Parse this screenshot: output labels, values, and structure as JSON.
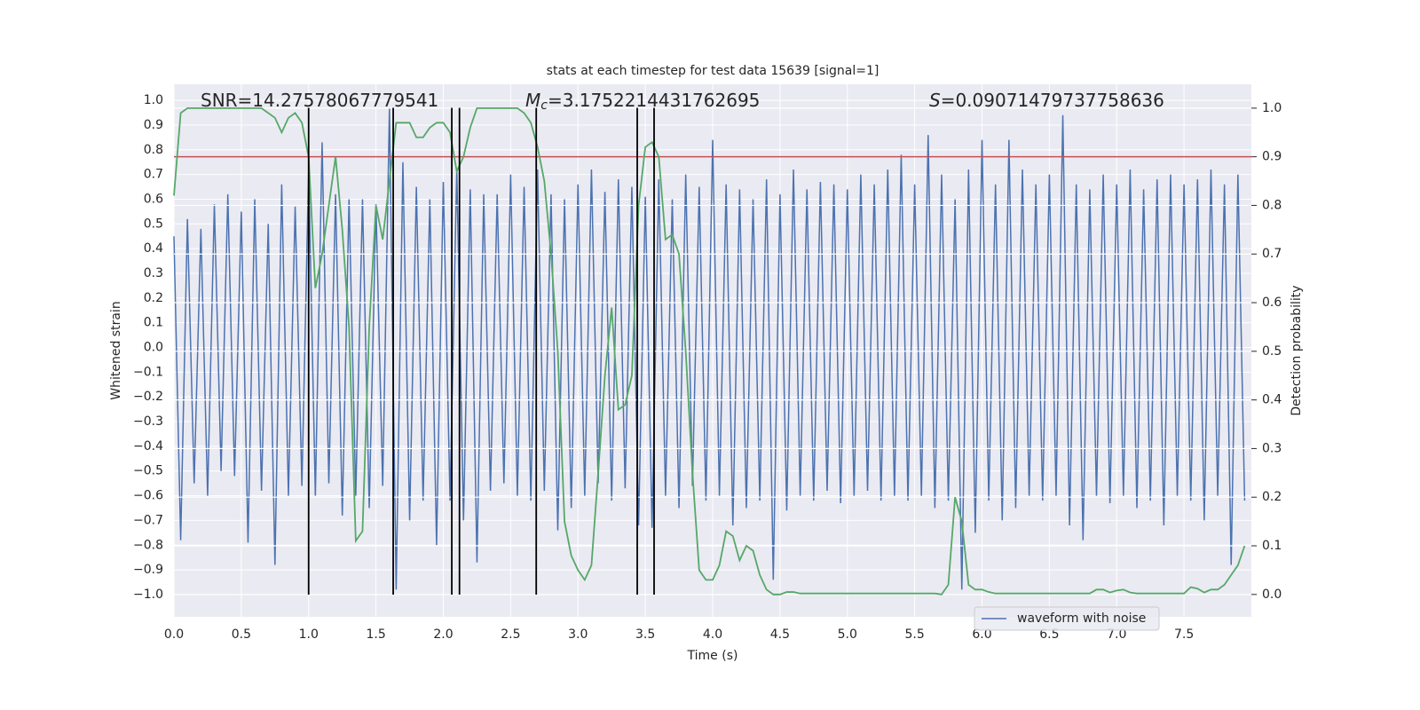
{
  "chart_data": {
    "type": "line",
    "title": "stats at each timestep for test data 15639 [signal=1]",
    "xlabel": "Time (s)",
    "ylabel": "Whitened strain",
    "y2label": "Detection probability",
    "annotations": [
      {
        "text": "SNR=14.27578067779541"
      },
      {
        "symbol": "M",
        "subscript": "c",
        "text": "=3.1752214431762695"
      },
      {
        "symbol": "S",
        "text": "=0.09071479737758636"
      }
    ],
    "xlim": [
      0,
      8.0
    ],
    "ylim": [
      -1.09,
      1.065
    ],
    "y2lim": [
      -0.046,
      1.049
    ],
    "xticks": [
      {
        "value": 0,
        "label": "0.0"
      },
      0.5,
      {
        "value": 1,
        "label": "1.0"
      },
      1.5,
      {
        "value": 2,
        "label": "2.0"
      },
      2.5,
      {
        "value": 3,
        "label": "3.0"
      },
      3.5,
      {
        "value": 4,
        "label": "4.0"
      },
      4.5,
      {
        "value": 5,
        "label": "5.0"
      },
      5.5,
      {
        "value": 6,
        "label": "6.0"
      },
      6.5,
      {
        "value": 7,
        "label": "7.0"
      },
      7.5
    ],
    "yticks": [
      {
        "value": -1.0,
        "label": "−1.0"
      },
      {
        "value": -0.9,
        "label": "−0.9"
      },
      {
        "value": -0.8,
        "label": "−0.8"
      },
      {
        "value": -0.7,
        "label": "−0.7"
      },
      {
        "value": -0.6,
        "label": "−0.6"
      },
      {
        "value": -0.5,
        "label": "−0.5"
      },
      {
        "value": -0.4,
        "label": "−0.4"
      },
      {
        "value": -0.3,
        "label": "−0.3"
      },
      {
        "value": -0.2,
        "label": "−0.2"
      },
      {
        "value": -0.1,
        "label": "−0.1"
      },
      {
        "value": 0,
        "label": "0.0"
      },
      0.1,
      0.2,
      0.3,
      0.4,
      0.5,
      0.6,
      0.7,
      0.8,
      0.9,
      {
        "value": 1,
        "label": "1.0"
      }
    ],
    "y2ticks": [
      {
        "value": 0,
        "label": "0.0"
      },
      0.1,
      0.2,
      0.3,
      0.4,
      0.5,
      0.6,
      0.7,
      0.8,
      0.9,
      {
        "value": 1,
        "label": "1.0"
      }
    ],
    "grid": true,
    "legend": "lower right",
    "x": [
      0,
      0.05,
      0.1,
      0.15,
      0.2,
      0.25,
      0.3,
      0.35,
      0.4,
      0.45,
      0.5,
      0.55,
      0.6,
      0.65,
      0.7,
      0.75,
      0.8,
      0.85,
      0.9,
      0.95,
      1,
      1.05,
      1.1,
      1.15,
      1.2,
      1.25,
      1.3,
      1.35,
      1.4,
      1.45,
      1.5,
      1.55,
      1.6,
      1.65,
      1.7,
      1.75,
      1.8,
      1.85,
      1.9,
      1.95,
      2,
      2.05,
      2.1,
      2.15,
      2.2,
      2.25,
      2.3,
      2.35,
      2.4,
      2.45,
      2.5,
      2.55,
      2.6,
      2.65,
      2.7,
      2.75,
      2.8,
      2.85,
      2.9,
      2.95,
      3,
      3.05,
      3.1,
      3.15,
      3.2,
      3.25,
      3.3,
      3.35,
      3.4,
      3.45,
      3.5,
      3.55,
      3.6,
      3.65,
      3.7,
      3.75,
      3.8,
      3.85,
      3.9,
      3.95,
      4,
      4.05,
      4.1,
      4.15,
      4.2,
      4.25,
      4.3,
      4.35,
      4.4,
      4.45,
      4.5,
      4.55,
      4.6,
      4.65,
      4.7,
      4.75,
      4.8,
      4.85,
      4.9,
      4.95,
      5,
      5.05,
      5.1,
      5.15,
      5.2,
      5.25,
      5.3,
      5.35,
      5.4,
      5.45,
      5.5,
      5.55,
      5.6,
      5.65,
      5.7,
      5.75,
      5.8,
      5.85,
      5.9,
      5.95,
      6,
      6.05,
      6.1,
      6.15,
      6.2,
      6.25,
      6.3,
      6.35,
      6.4,
      6.45,
      6.5,
      6.55,
      6.6,
      6.65,
      6.7,
      6.75,
      6.8,
      6.85,
      6.9,
      6.95,
      7,
      7.05,
      7.1,
      7.15,
      7.2,
      7.25,
      7.3,
      7.35,
      7.4,
      7.45,
      7.5,
      7.55,
      7.6,
      7.65,
      7.7,
      7.75,
      7.8,
      7.85,
      7.9,
      7.95
    ],
    "series": [
      {
        "name": "waveform with noise",
        "color": "#4c72b0",
        "values": [
          0.45,
          -0.78,
          0.52,
          -0.55,
          0.48,
          -0.6,
          0.58,
          -0.5,
          0.62,
          -0.52,
          0.55,
          -0.79,
          0.6,
          -0.58,
          0.5,
          -0.88,
          0.66,
          -0.6,
          0.57,
          -0.56,
          0.72,
          -0.6,
          0.83,
          -0.55,
          0.62,
          -0.68,
          0.6,
          -0.6,
          0.6,
          -0.65,
          0.58,
          -0.56,
          0.97,
          -0.98,
          0.75,
          -0.7,
          0.65,
          -0.62,
          0.6,
          -0.8,
          0.67,
          -0.62,
          0.72,
          -0.7,
          0.64,
          -0.87,
          0.62,
          -0.58,
          0.62,
          -0.55,
          0.7,
          -0.6,
          0.65,
          -0.62,
          0.72,
          -0.58,
          0.62,
          -0.74,
          0.6,
          -0.65,
          0.66,
          -0.6,
          0.72,
          -0.55,
          0.63,
          -0.62,
          0.68,
          -0.57,
          0.65,
          -0.72,
          0.61,
          -0.73,
          0.68,
          -0.6,
          0.6,
          -0.65,
          0.7,
          -0.56,
          0.65,
          -0.62,
          0.84,
          -0.6,
          0.66,
          -0.72,
          0.64,
          -0.65,
          0.6,
          -0.62,
          0.68,
          -0.94,
          0.62,
          -0.66,
          0.72,
          -0.6,
          0.64,
          -0.62,
          0.67,
          -0.58,
          0.66,
          -0.63,
          0.64,
          -0.6,
          0.7,
          -0.58,
          0.66,
          -0.62,
          0.72,
          -0.6,
          0.78,
          -0.62,
          0.66,
          -0.6,
          0.86,
          -0.65,
          0.7,
          -0.62,
          0.6,
          -0.98,
          0.72,
          -0.75,
          0.84,
          -0.62,
          0.66,
          -0.7,
          0.84,
          -0.65,
          0.72,
          -0.6,
          0.66,
          -0.62,
          0.7,
          -0.6,
          0.94,
          -0.72,
          0.66,
          -0.78,
          0.64,
          -0.6,
          0.7,
          -0.63,
          0.66,
          -0.6,
          0.72,
          -0.65,
          0.64,
          -0.62,
          0.68,
          -0.72,
          0.7,
          -0.6,
          0.66,
          -0.62,
          0.68,
          -0.7,
          0.72,
          -0.6,
          0.66,
          -0.88,
          0.7,
          -0.62
        ]
      },
      {
        "color": "#55a868",
        "axis": "y2",
        "values": [
          0.82,
          0.99,
          1.0,
          1.0,
          1.0,
          1.0,
          1.0,
          1.0,
          1.0,
          1.0,
          1.0,
          1.0,
          1.0,
          1.0,
          0.99,
          0.98,
          0.95,
          0.98,
          0.99,
          0.97,
          0.9,
          0.63,
          0.7,
          0.8,
          0.9,
          0.75,
          0.55,
          0.11,
          0.13,
          0.55,
          0.8,
          0.73,
          0.85,
          0.97,
          0.97,
          0.97,
          0.94,
          0.94,
          0.96,
          0.97,
          0.97,
          0.95,
          0.87,
          0.9,
          0.96,
          1.0,
          1.0,
          1.0,
          1.0,
          1.0,
          1.0,
          1.0,
          0.99,
          0.97,
          0.92,
          0.85,
          0.7,
          0.5,
          0.15,
          0.08,
          0.05,
          0.03,
          0.06,
          0.25,
          0.45,
          0.59,
          0.38,
          0.39,
          0.45,
          0.8,
          0.92,
          0.93,
          0.9,
          0.73,
          0.74,
          0.7,
          0.5,
          0.25,
          0.05,
          0.03,
          0.03,
          0.06,
          0.13,
          0.12,
          0.07,
          0.1,
          0.09,
          0.04,
          0.01,
          0.0,
          0.0,
          0.005,
          0.005,
          0.002,
          0.002,
          0.002,
          0.002,
          0.002,
          0.002,
          0.002,
          0.002,
          0.002,
          0.002,
          0.002,
          0.002,
          0.002,
          0.002,
          0.002,
          0.002,
          0.002,
          0.002,
          0.002,
          0.002,
          0.002,
          0.0,
          0.02,
          0.2,
          0.15,
          0.02,
          0.01,
          0.01,
          0.005,
          0.002,
          0.002,
          0.002,
          0.002,
          0.002,
          0.002,
          0.002,
          0.002,
          0.002,
          0.002,
          0.002,
          0.002,
          0.002,
          0.002,
          0.002,
          0.01,
          0.01,
          0.004,
          0.008,
          0.01,
          0.004,
          0.002,
          0.002,
          0.002,
          0.002,
          0.002,
          0.002,
          0.002,
          0.002,
          0.015,
          0.012,
          0.004,
          0.01,
          0.01,
          0.02,
          0.04,
          0.06,
          0.1
        ]
      }
    ],
    "threshold": {
      "value": 0.9,
      "axis": "y2",
      "color": "#c44e52"
    },
    "vlines": {
      "x": [
        1.0,
        1.628,
        2.063,
        2.12,
        2.69,
        3.44,
        3.565
      ],
      "ymin": -1.0,
      "ymax": 0.97,
      "color": "#000000"
    }
  }
}
